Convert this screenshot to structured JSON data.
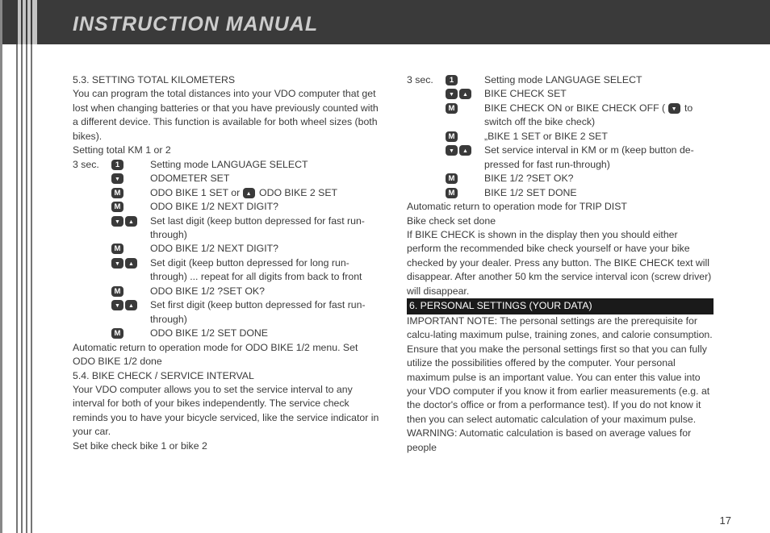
{
  "header": {
    "title": "INSTRUCTION MANUAL"
  },
  "page_number": "17",
  "left": {
    "s53_title": "5.3. SETTING TOTAL KILOMETERS",
    "s53_body": "You can program the total distances into your VDO computer that get lost when changing batteries or that you have previously counted with a different device. This function is available for both wheel sizes (both bikes).",
    "set_km_label": "Setting total KM 1 or 2",
    "r1_c1": "3 sec.",
    "r1_c3": "Setting mode LANGUAGE SELECT",
    "r2_c3": "ODOMETER SET",
    "r3a": "ODO BIKE 1 SET or ",
    "r3b": " ODO BIKE 2 SET",
    "r4_c3": "ODO BIKE 1/2 NEXT DIGIT?",
    "r5_c3": "Set last digit (keep button depressed for fast run-through)",
    "r6_c3": "ODO BIKE 1/2 NEXT DIGIT?",
    "r7_c3": "Set digit (keep button depressed for long run-through) ... repeat for all digits from back to front",
    "r8_c3": "ODO BIKE 1/2 ?SET OK?",
    "r9_c3": "Set first digit (keep button depressed for fast run-through)",
    "r10_c3": "ODO BIKE 1/2 SET DONE",
    "s53_footer": "Automatic return to operation mode for ODO BIKE 1/2 menu. Set ODO BIKE 1/2 done",
    "s54_title": "5.4. BIKE CHECK / SERVICE INTERVAL",
    "s54_body": "Your VDO computer allows you to set the service interval to any interval for both of your bikes independently. The service check reminds you to have your bicycle serviced, like the service indicator in your car.",
    "s54_line2": "Set bike check bike 1 or bike 2"
  },
  "right": {
    "rr1_c1": "3 sec.",
    "rr1_c3": "Setting mode LANGUAGE SELECT",
    "rr2_c3": "BIKE CHECK SET",
    "rr3a": "BIKE CHECK ON or BIKE CHECK OFF ( ",
    "rr3b": " to switch off the bike check)",
    "rr4_c3": "„BIKE 1 SET or BIKE 2 SET",
    "rr5_c3": "Set service interval in KM or m (keep button de-pressed for fast run-through)",
    "rr6_c3": "BIKE 1/2 ?SET OK?",
    "rr7_c3": "BIKE 1/2 SET DONE",
    "r_footer1": "Automatic return to operation mode for TRIP DIST",
    "r_footer2": "Bike check set done",
    "bike_check_text": "If BIKE CHECK is shown in the display then you should either perform the recommended bike check yourself or have your bike checked by your dealer. Press any button. The BIKE CHECK text will disappear. After another 50 km the service interval icon (screw driver) will disappear.",
    "s6_bar": " 6. PERSONAL SETTINGS (YOUR DATA)",
    "s6_body": "IMPORTANT NOTE: The personal settings are the prerequisite for calcu-lating maximum pulse, training zones, and calorie consumption. Ensure that you make the personal settings first so that you can fully utilize the possibilities offered by the computer. Your personal maximum pulse is an important value. You can enter this value into your VDO computer if you know it from earlier measurements (e.g. at the doctor's office or from a performance test). If you do not know it then you can select automatic calculation of your maximum pulse.",
    "s6_warn": "WARNING: Automatic calculation is based on average values for people"
  },
  "icons": {
    "m_label": "M",
    "one_label": "1"
  }
}
